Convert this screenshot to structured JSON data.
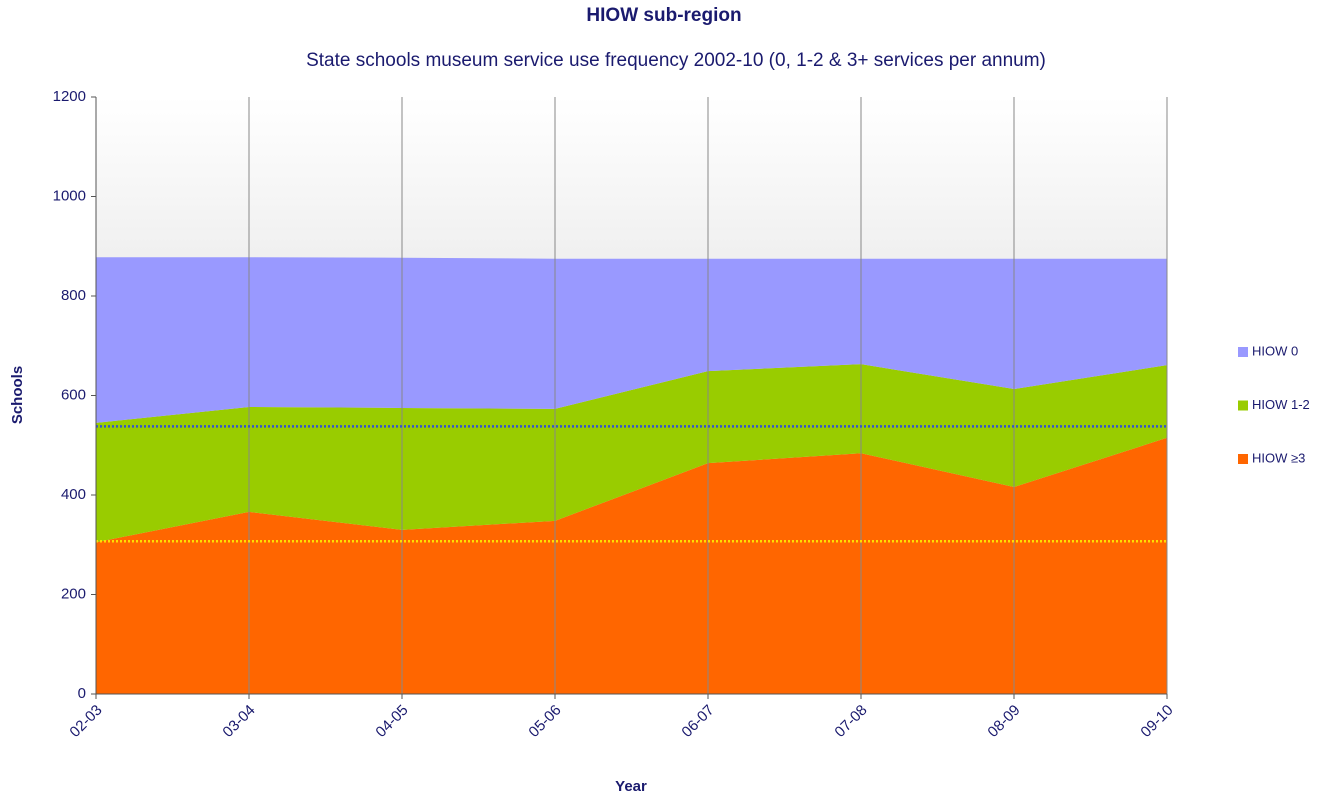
{
  "chart_data": {
    "type": "stacked_area",
    "title": "HIOW sub-region",
    "subtitle": "State schools museum service use frequency 2002-10 (0, 1-2 & 3+  services per annum)",
    "x_label": "Year",
    "y_label": "Schools",
    "categories": [
      "02-03",
      "03-04",
      "04-05",
      "05-06",
      "06-07",
      "07-08",
      "08-09",
      "09-10"
    ],
    "series": [
      {
        "name": "HIOW ≥3",
        "color": "#ff6600",
        "values": [
          305,
          366,
          330,
          348,
          464,
          484,
          416,
          515
        ]
      },
      {
        "name": "HIOW 1-2",
        "color": "#99cc00",
        "values": [
          240,
          211,
          245,
          225,
          185,
          179,
          197,
          146
        ]
      },
      {
        "name": "HIOW 0",
        "color": "#9999ff",
        "values": [
          333,
          301,
          302,
          302,
          226,
          212,
          262,
          214
        ]
      }
    ],
    "reference_lines": [
      {
        "value": 538,
        "color": "#3355cc"
      },
      {
        "value": 307,
        "color": "#ffdd00"
      }
    ],
    "ylim": [
      0,
      1200
    ],
    "yticks": [
      0,
      200,
      400,
      600,
      800,
      1000,
      1200
    ],
    "legend": "right"
  }
}
